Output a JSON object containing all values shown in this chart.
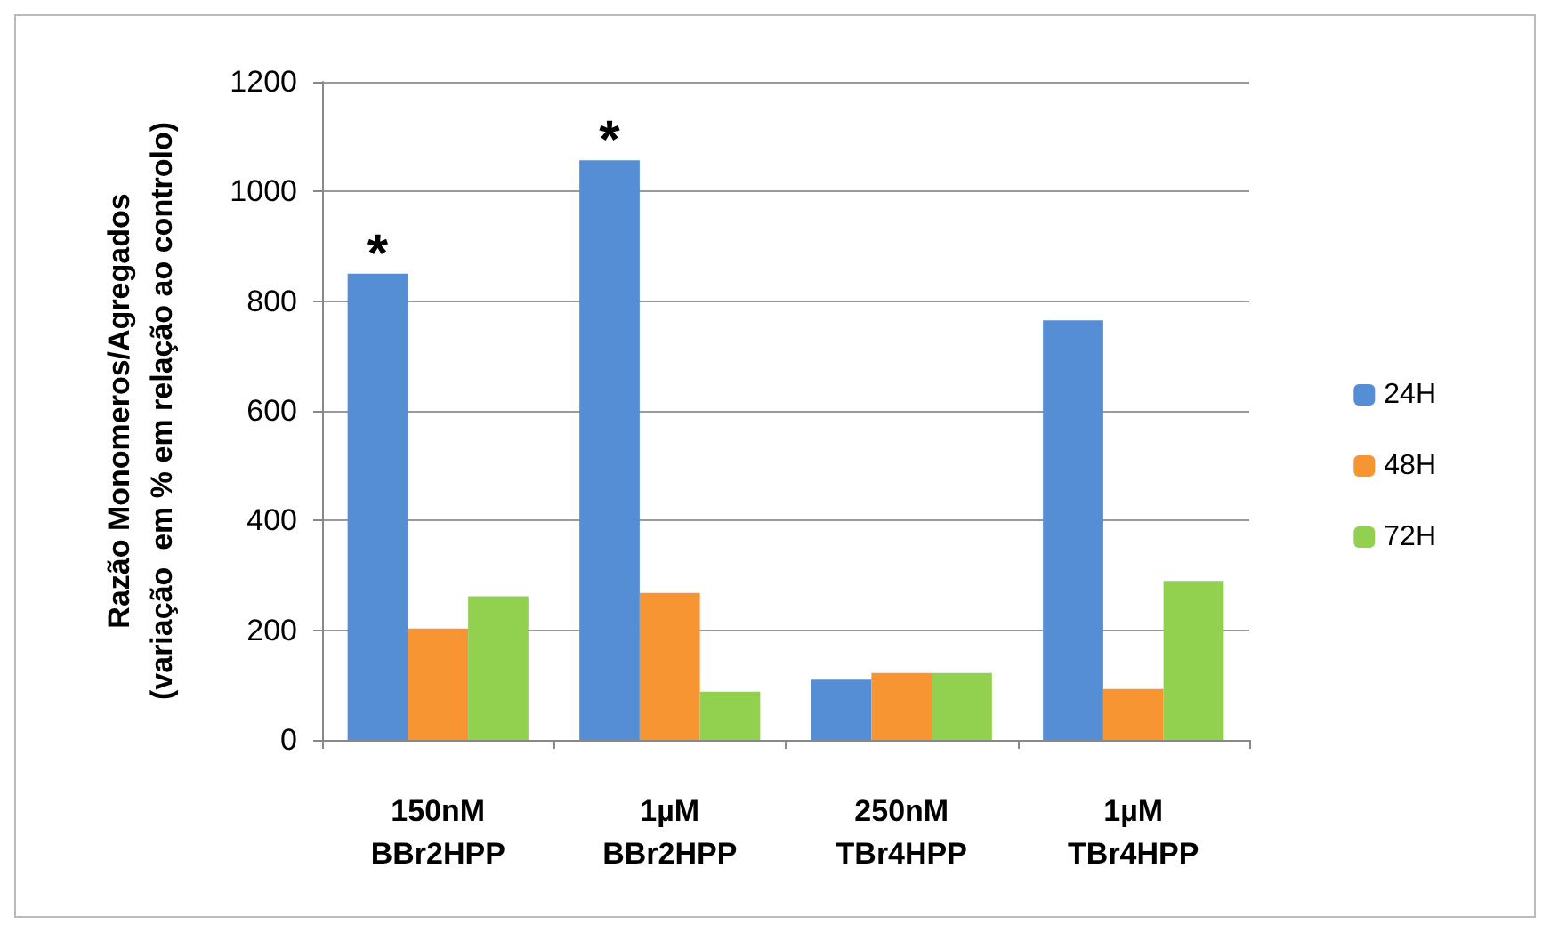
{
  "chart_data": {
    "type": "bar",
    "ylabel": "Razão Monomeros/Agregados\n(variação  em % em relação ao controlo)",
    "categories": [
      "150nM\nBBr2HPP",
      "1µM\nBBr2HPP",
      "250nM\nTBr4HPP",
      "1µM\nTBr4HPP"
    ],
    "series": [
      {
        "name": "24H",
        "color": "#558ed5",
        "values": [
          850,
          1057,
          110,
          765
        ]
      },
      {
        "name": "48H",
        "color": "#f79533",
        "values": [
          203,
          268,
          122,
          93
        ]
      },
      {
        "name": "72H",
        "color": "#92d050",
        "values": [
          262,
          88,
          122,
          290
        ]
      }
    ],
    "ylim": [
      0,
      1200
    ],
    "yticks": [
      0,
      200,
      400,
      600,
      800,
      1000,
      1200
    ],
    "grid": "y",
    "legend": "right",
    "annotations": [
      "*",
      "*"
    ]
  }
}
